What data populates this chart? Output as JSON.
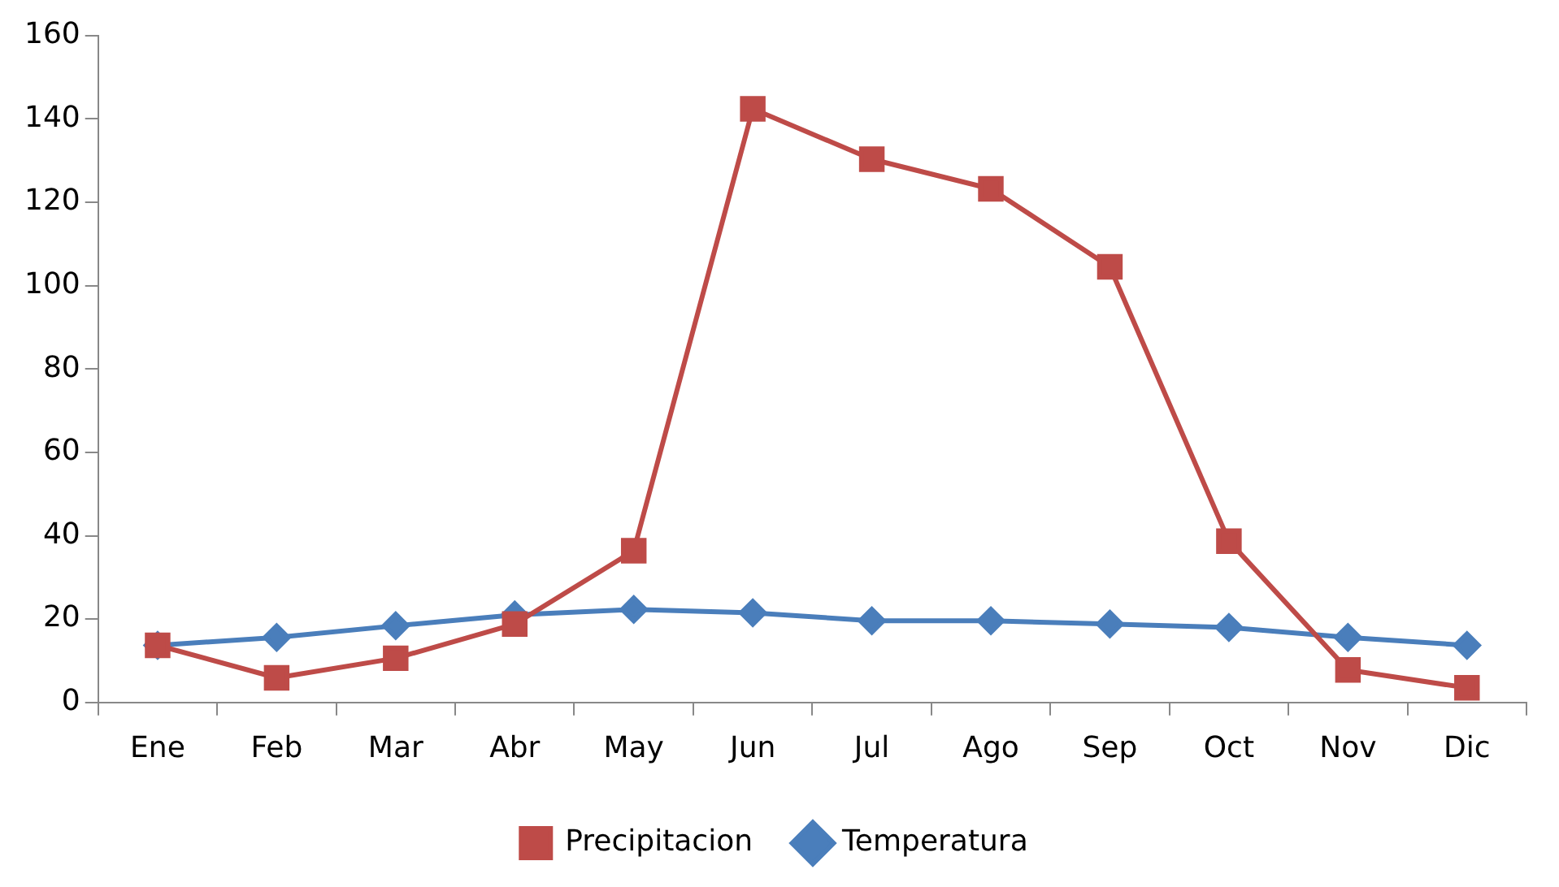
{
  "chart_data": {
    "type": "line",
    "categories": [
      "Ene",
      "Feb",
      "Mar",
      "Abr",
      "May",
      "Jun",
      "Jul",
      "Ago",
      "Sep",
      "Oct",
      "Nov",
      "Dic"
    ],
    "series": [
      {
        "name": "Temperatura",
        "color": "#4a7ebb",
        "marker": "diamond",
        "values": [
          13.7,
          15.6,
          18.4,
          21,
          22.3,
          21.5,
          19.6,
          19.6,
          18.8,
          18,
          15.6,
          13.7
        ]
      },
      {
        "name": "Precipitacion",
        "color": "#be4b48",
        "marker": "square",
        "values": [
          13.7,
          5.9,
          10.6,
          18.8,
          36.4,
          142.4,
          130.3,
          123.2,
          104.5,
          38.7,
          7.8,
          3.5
        ]
      }
    ],
    "ylim": [
      0,
      160
    ],
    "yticks": [
      0,
      20,
      40,
      60,
      80,
      100,
      120,
      140,
      160
    ],
    "grid": false,
    "legend": "bottom"
  }
}
